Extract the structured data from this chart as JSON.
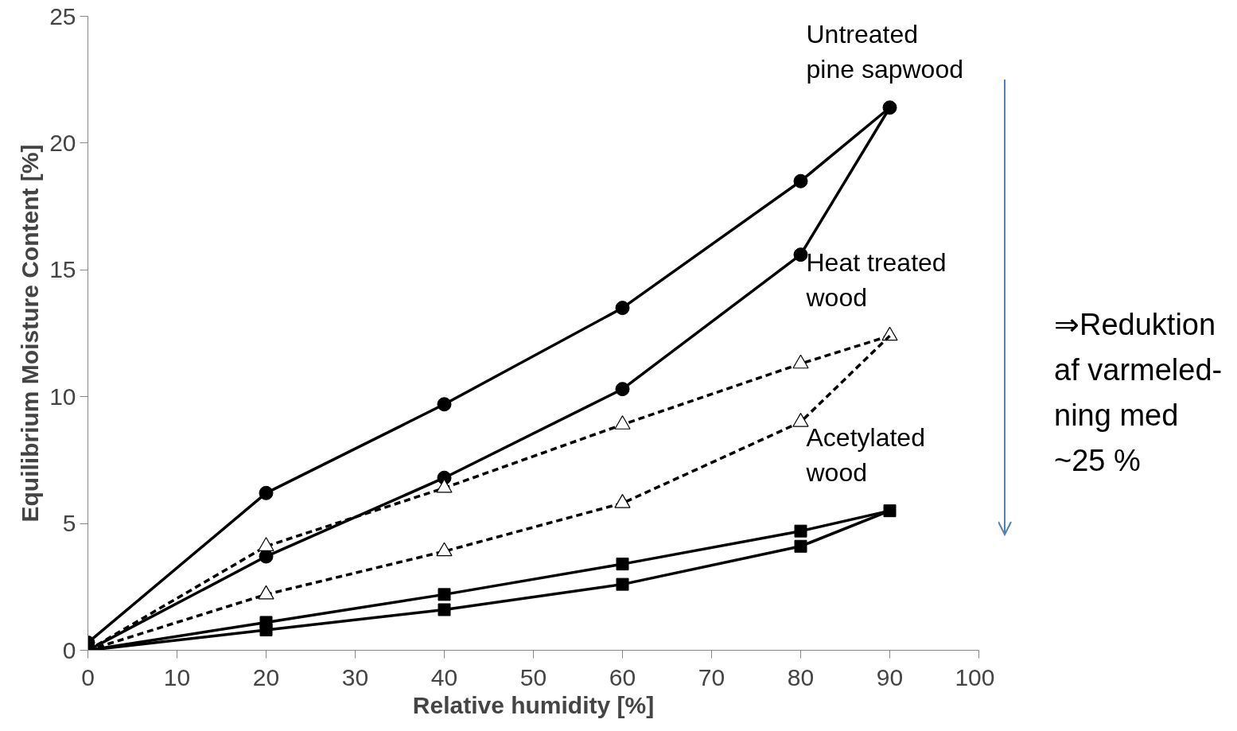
{
  "chart_data": {
    "type": "line",
    "xlabel": "Relative humidity [%]",
    "ylabel": "Equilibrium Moisture Content [%]",
    "xlim": [
      0,
      100
    ],
    "ylim": [
      0,
      25
    ],
    "xticks": [
      0,
      10,
      20,
      30,
      40,
      50,
      60,
      70,
      80,
      90,
      100
    ],
    "yticks": [
      0,
      5,
      10,
      15,
      20,
      25
    ],
    "grid": false,
    "series": [
      {
        "name": "Untreated\npine sapwood",
        "color": "#000000",
        "marker": "circle",
        "line_style": "solid",
        "x": [
          0,
          20,
          40,
          60,
          80,
          90
        ],
        "values": [
          0.3,
          6.2,
          9.7,
          13.5,
          18.5,
          21.4
        ]
      },
      {
        "color": "#000000",
        "marker": "circle",
        "line_style": "solid",
        "x": [
          0,
          20,
          40,
          60,
          80,
          90
        ],
        "values": [
          0,
          3.7,
          6.8,
          10.3,
          15.6,
          21.4
        ]
      },
      {
        "name": "Heat treated\nwood",
        "color": "#000000",
        "marker": "triangle",
        "line_style": "dashed",
        "x": [
          0,
          20,
          40,
          60,
          80,
          90
        ],
        "values": [
          0,
          4.1,
          6.4,
          8.9,
          11.3,
          12.4
        ]
      },
      {
        "color": "#000000",
        "marker": "triangle",
        "line_style": "dashed",
        "x": [
          0,
          20,
          40,
          60,
          80,
          90
        ],
        "values": [
          0,
          2.2,
          3.9,
          5.8,
          9.0,
          12.4
        ]
      },
      {
        "name": "Acetylated\nwood",
        "color": "#000000",
        "marker": "square",
        "line_style": "solid",
        "x": [
          0,
          20,
          40,
          60,
          80,
          90
        ],
        "values": [
          0,
          1.1,
          2.2,
          3.4,
          4.7,
          5.5
        ]
      },
      {
        "color": "#000000",
        "marker": "square",
        "line_style": "solid",
        "x": [
          0,
          20,
          40,
          60,
          80,
          90
        ],
        "values": [
          0,
          0.8,
          1.6,
          2.6,
          4.1,
          5.5
        ]
      }
    ],
    "annotations": [
      "⇒Reduktion\naf varmeled-\nning med\n~25 %"
    ]
  }
}
